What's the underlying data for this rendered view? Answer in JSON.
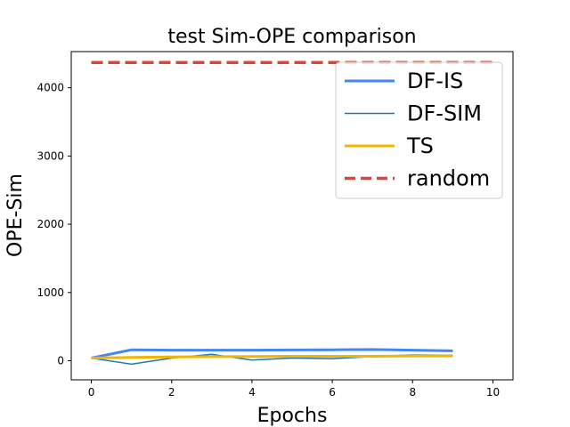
{
  "chart_data": {
    "type": "line",
    "title": "test Sim-OPE comparison",
    "xlabel": "Epochs",
    "ylabel": "OPE-Sim",
    "xlim": [
      -0.5,
      10.5
    ],
    "ylim": [
      -280,
      4530
    ],
    "xticks": [
      0,
      2,
      4,
      6,
      8,
      10
    ],
    "yticks": [
      0,
      1000,
      2000,
      3000,
      4000
    ],
    "grid": false,
    "legend_position": "top-right",
    "series": [
      {
        "name": "DF-IS",
        "color": "#4285f4",
        "line_style": "solid",
        "x": [
          0,
          1,
          2,
          3,
          4,
          5,
          6,
          7,
          8,
          9
        ],
        "values": [
          40,
          160,
          155,
          155,
          155,
          158,
          160,
          165,
          155,
          145
        ]
      },
      {
        "name": "DF-SIM",
        "color": "#1f77b4",
        "line_style": "solid",
        "x": [
          0,
          1,
          2,
          3,
          4,
          5,
          6,
          7,
          8,
          9
        ],
        "values": [
          40,
          -50,
          40,
          95,
          10,
          40,
          30,
          60,
          85,
          80
        ]
      },
      {
        "name": "TS",
        "color": "#f4b400",
        "line_style": "solid",
        "x": [
          0,
          1,
          2,
          3,
          4,
          5,
          6,
          7,
          8,
          9
        ],
        "values": [
          40,
          50,
          55,
          60,
          62,
          65,
          65,
          65,
          70,
          70
        ]
      },
      {
        "name": "random",
        "color": "#db4437",
        "line_style": "dashed",
        "x": [
          0,
          10
        ],
        "values": [
          4370,
          4370
        ]
      }
    ]
  }
}
